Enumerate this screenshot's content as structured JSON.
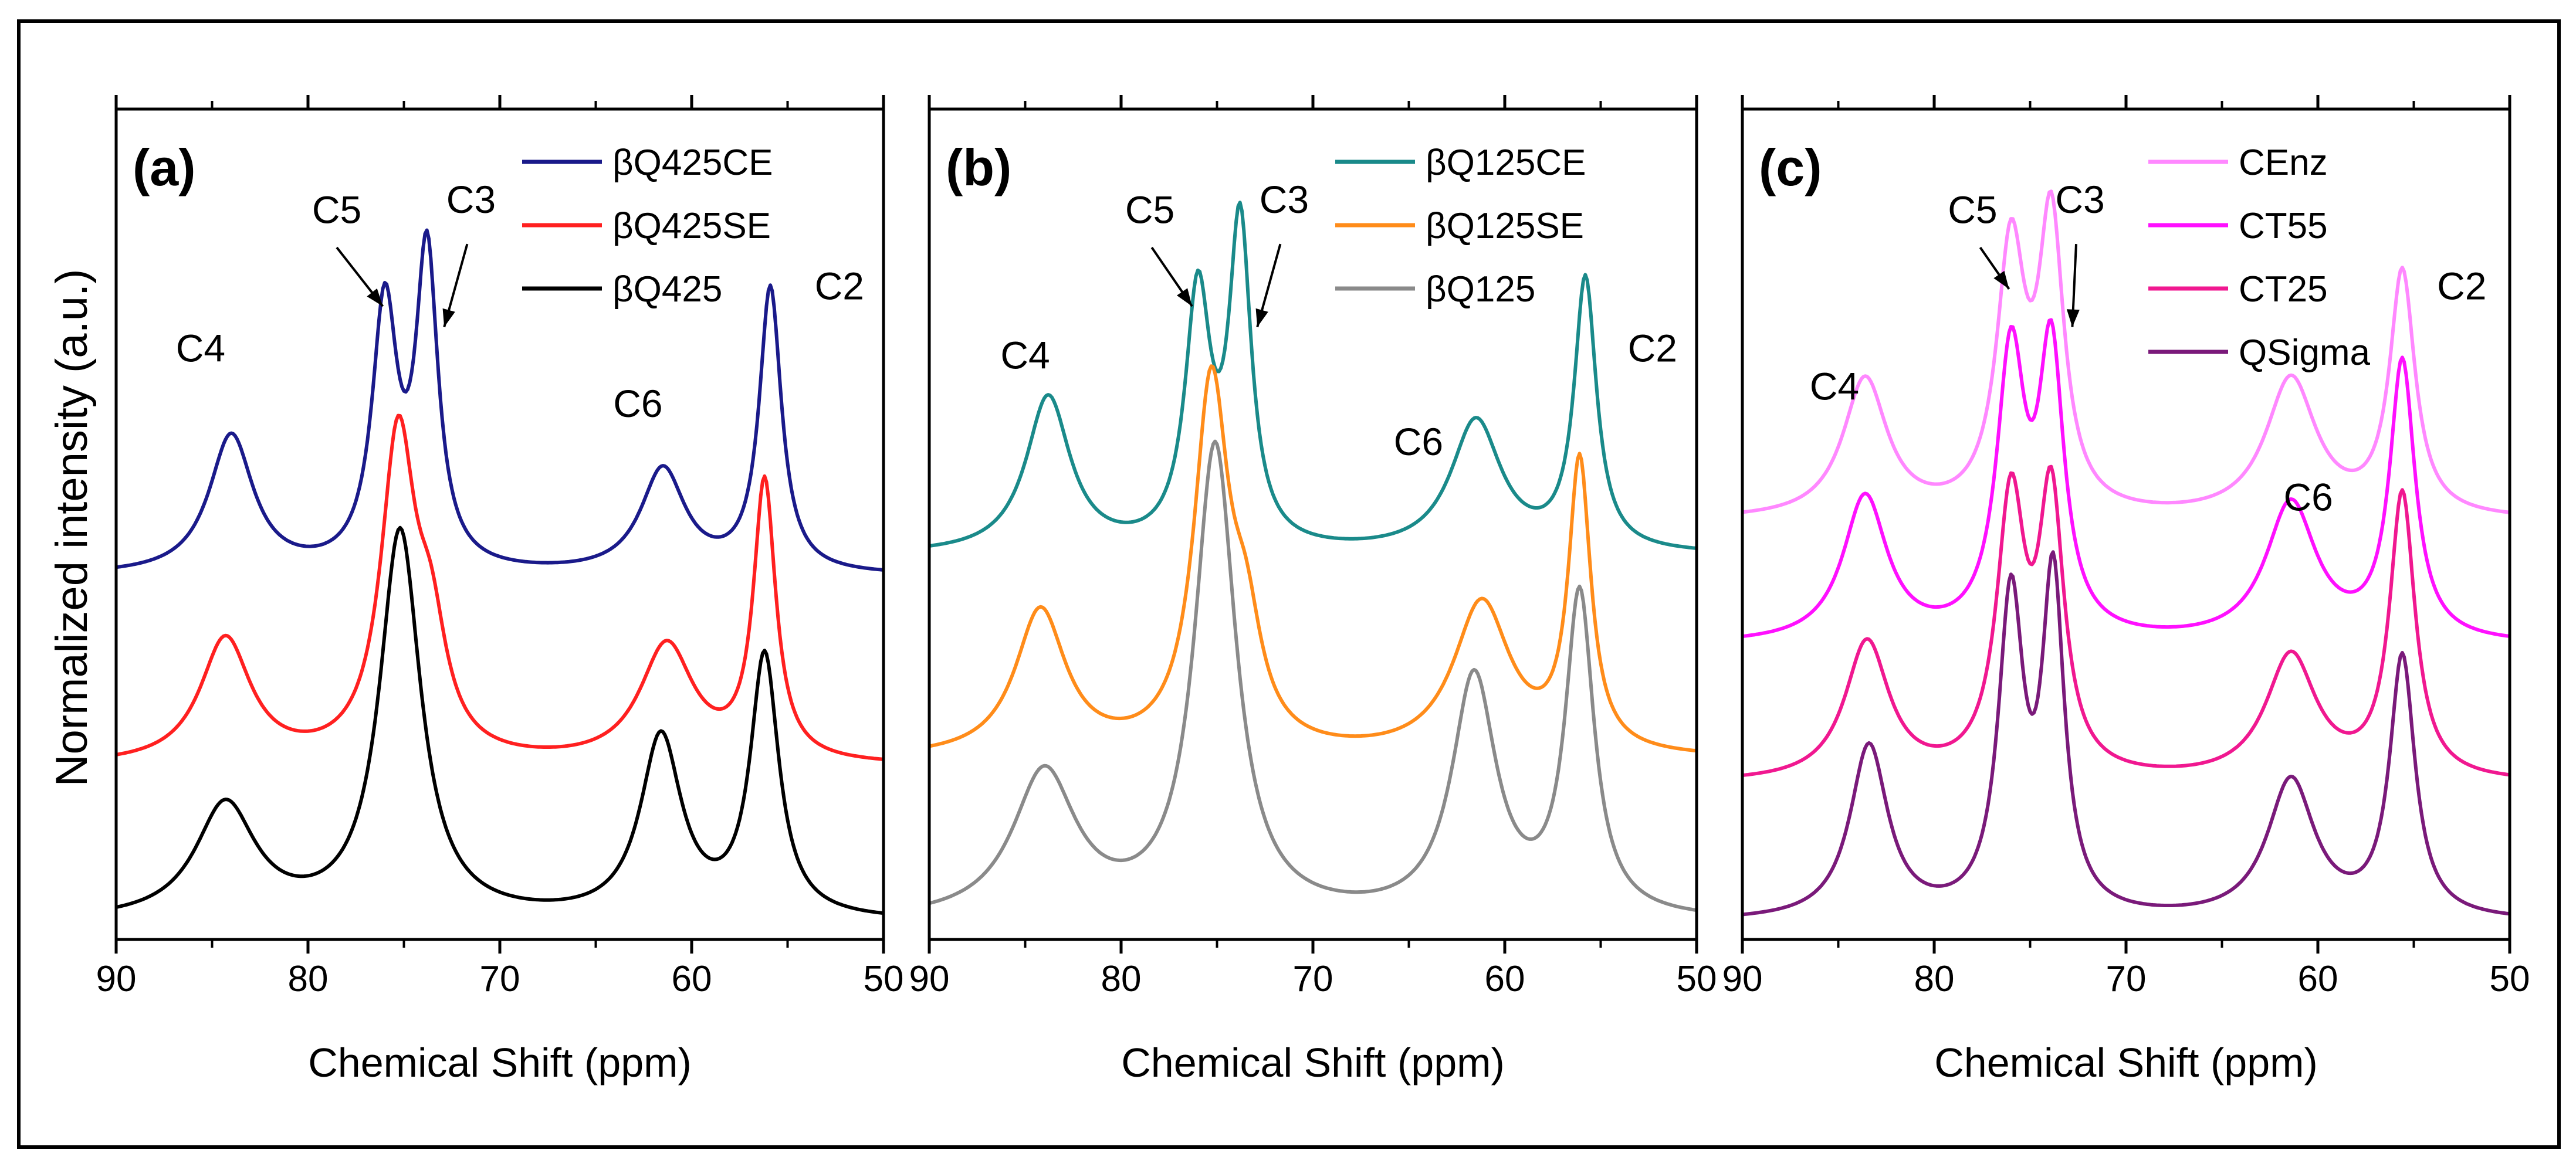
{
  "ylabel": "Normalized intensity (a.u.)",
  "chart_data": [
    {
      "type": "line",
      "panel_label": "(a)",
      "xlabel": "Chemical Shift (ppm)",
      "xlim": [
        90,
        50
      ],
      "xticks": [
        90,
        80,
        70,
        60,
        50
      ],
      "tick_labels": [
        "90",
        "80",
        "70",
        "60",
        "50"
      ],
      "annotations": [
        {
          "text": "C5",
          "x": 78.5,
          "y": 2.02
        },
        {
          "text": "C3",
          "x": 71.5,
          "y": 2.05
        },
        {
          "text": "C4",
          "x": 85.6,
          "y": 1.62
        },
        {
          "text": "C6",
          "x": 62.8,
          "y": 1.46
        },
        {
          "text": "C2",
          "x": 52.3,
          "y": 1.8
        }
      ],
      "arrows": [
        {
          "label": "C5",
          "from": [
            78.5,
            1.95
          ],
          "to": [
            76.1,
            1.78
          ]
        },
        {
          "label": "C3",
          "from": [
            71.7,
            1.96
          ],
          "to": [
            72.9,
            1.72
          ]
        }
      ],
      "series": [
        {
          "name": "βQ425CE",
          "color": "#1a1a8a",
          "baseline": 1.0,
          "peaks": [
            [
              84.0,
              0.4,
              1.4
            ],
            [
              76.0,
              0.75,
              0.8
            ],
            [
              73.8,
              0.9,
              0.7
            ],
            [
              61.5,
              0.3,
              1.4
            ],
            [
              55.9,
              0.82,
              0.7
            ]
          ]
        },
        {
          "name": "βQ425SE",
          "color": "#ff2020",
          "baseline": 0.45,
          "peaks": [
            [
              84.3,
              0.36,
              1.6
            ],
            [
              75.3,
              0.92,
              1.1
            ],
            [
              73.6,
              0.3,
              1.0
            ],
            [
              61.3,
              0.34,
              1.7
            ],
            [
              56.2,
              0.8,
              0.7
            ]
          ]
        },
        {
          "name": "βQ425",
          "color": "#000000",
          "baseline": 0.0,
          "peaks": [
            [
              84.3,
              0.33,
              1.9
            ],
            [
              75.2,
              1.12,
              1.3
            ],
            [
              61.6,
              0.52,
              1.3
            ],
            [
              56.2,
              0.75,
              0.9
            ]
          ]
        }
      ]
    },
    {
      "type": "line",
      "panel_label": "(b)",
      "xlabel": "Chemical Shift (ppm)",
      "xlim": [
        90,
        50
      ],
      "xticks": [
        90,
        80,
        70,
        60,
        50
      ],
      "tick_labels": [
        "90",
        "80",
        "70",
        "60",
        "50"
      ],
      "annotations": [
        {
          "text": "C5",
          "x": 78.5,
          "y": 2.02
        },
        {
          "text": "C3",
          "x": 71.5,
          "y": 2.05
        },
        {
          "text": "C4",
          "x": 85.0,
          "y": 1.6
        },
        {
          "text": "C6",
          "x": 64.5,
          "y": 1.35
        },
        {
          "text": "C2",
          "x": 52.3,
          "y": 1.62
        }
      ],
      "arrows": [
        {
          "label": "C5",
          "from": [
            78.4,
            1.95
          ],
          "to": [
            76.3,
            1.78
          ]
        },
        {
          "label": "C3",
          "from": [
            71.7,
            1.96
          ],
          "to": [
            72.9,
            1.72
          ]
        }
      ],
      "series": [
        {
          "name": "βQ125CE",
          "color": "#1a8a8a",
          "baseline": 1.06,
          "peaks": [
            [
              83.8,
              0.45,
              1.4
            ],
            [
              76.0,
              0.72,
              0.8
            ],
            [
              73.8,
              0.92,
              0.7
            ],
            [
              61.5,
              0.38,
              1.6
            ],
            [
              55.8,
              0.78,
              0.7
            ]
          ]
        },
        {
          "name": "βQ125SE",
          "color": "#ff8c1a",
          "baseline": 0.47,
          "peaks": [
            [
              84.2,
              0.42,
              1.6
            ],
            [
              75.3,
              1.05,
              1.1
            ],
            [
              73.5,
              0.28,
              1.0
            ],
            [
              61.2,
              0.44,
              1.8
            ],
            [
              56.1,
              0.83,
              0.7
            ]
          ]
        },
        {
          "name": "βQ125",
          "color": "#8a8a8a",
          "baseline": 0.0,
          "peaks": [
            [
              84.0,
              0.42,
              2.0
            ],
            [
              75.1,
              1.36,
              1.3
            ],
            [
              61.6,
              0.69,
              1.4
            ],
            [
              56.1,
              0.92,
              0.9
            ]
          ]
        }
      ]
    },
    {
      "type": "line",
      "panel_label": "(c)",
      "xlabel": "Chemical Shift (ppm)",
      "xlim": [
        90,
        50
      ],
      "xticks": [
        90,
        80,
        70,
        60,
        50
      ],
      "tick_labels": [
        "90",
        "80",
        "70",
        "60",
        "50"
      ],
      "annotations": [
        {
          "text": "C5",
          "x": 78.0,
          "y": 2.02
        },
        {
          "text": "C3",
          "x": 72.4,
          "y": 2.05
        },
        {
          "text": "C4",
          "x": 85.2,
          "y": 1.51
        },
        {
          "text": "C6",
          "x": 60.5,
          "y": 1.19
        },
        {
          "text": "C2",
          "x": 52.5,
          "y": 1.8
        }
      ],
      "arrows": [
        {
          "label": "C5",
          "from": [
            77.6,
            1.95
          ],
          "to": [
            76.1,
            1.83
          ]
        },
        {
          "label": "C3",
          "from": [
            72.6,
            1.96
          ],
          "to": [
            72.8,
            1.72
          ]
        }
      ],
      "series": [
        {
          "name": "CEnz",
          "color": "#ff88ff",
          "baseline": 1.16,
          "peaks": [
            [
              83.6,
              0.4,
              1.4
            ],
            [
              76.0,
              0.75,
              0.9
            ],
            [
              73.9,
              0.82,
              0.8
            ],
            [
              61.4,
              0.4,
              1.6
            ],
            [
              55.6,
              0.7,
              0.8
            ]
          ]
        },
        {
          "name": "CT55",
          "color": "#ff10ff",
          "baseline": 0.8,
          "peaks": [
            [
              83.6,
              0.42,
              1.4
            ],
            [
              76.0,
              0.8,
              0.9
            ],
            [
              73.9,
              0.8,
              0.8
            ],
            [
              61.4,
              0.4,
              1.6
            ],
            [
              55.6,
              0.8,
              0.8
            ]
          ]
        },
        {
          "name": "CT25",
          "color": "#f01890",
          "baseline": 0.4,
          "peaks": [
            [
              83.5,
              0.4,
              1.4
            ],
            [
              76.0,
              0.78,
              0.9
            ],
            [
              73.9,
              0.78,
              0.8
            ],
            [
              61.4,
              0.36,
              1.6
            ],
            [
              55.6,
              0.82,
              0.8
            ]
          ]
        },
        {
          "name": "QSigma",
          "color": "#7a1a7a",
          "baseline": 0.0,
          "peaks": [
            [
              83.4,
              0.5,
              1.2
            ],
            [
              76.0,
              0.9,
              0.8
            ],
            [
              73.8,
              0.95,
              0.7
            ],
            [
              61.4,
              0.4,
              1.5
            ],
            [
              55.6,
              0.75,
              0.8
            ]
          ]
        }
      ]
    }
  ]
}
